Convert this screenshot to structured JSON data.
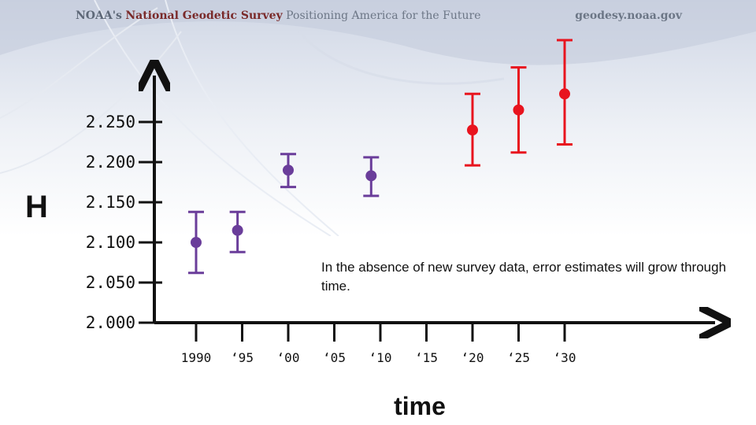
{
  "header": {
    "brand_strong": "NOAA's",
    "brand_name": "National Geodetic Survey",
    "tagline": "Positioning America for the Future",
    "website": "geodesy.noaa.gov"
  },
  "colors": {
    "surveyed": "#6a3d9a",
    "projected": "#e8141e",
    "axis": "#111111"
  },
  "chart_data": {
    "type": "scatter",
    "title": "",
    "xlabel": "time",
    "ylabel": "H",
    "y_ticks": [
      2.0,
      2.05,
      2.1,
      2.15,
      2.2,
      2.25
    ],
    "y_tick_labels": [
      "2.000",
      "2.050",
      "2.100",
      "2.150",
      "2.200",
      "2.250"
    ],
    "x_ticks": [
      1990,
      1995,
      2000,
      2005,
      2010,
      2015,
      2020,
      2025,
      2030
    ],
    "x_tick_labels": [
      "1990",
      "‘95",
      "‘00",
      "‘05",
      "‘10",
      "‘15",
      "‘20",
      "‘25",
      "‘30"
    ],
    "xlim": [
      1990,
      2035
    ],
    "ylim": [
      2.0,
      2.3
    ],
    "grid": false,
    "series": [
      {
        "color": "#6a3d9a",
        "points": [
          {
            "x": 1990,
            "y": 2.1,
            "err_low": 2.062,
            "err_high": 2.138
          },
          {
            "x": 1994.5,
            "y": 2.115,
            "err_low": 2.088,
            "err_high": 2.138
          },
          {
            "x": 2000,
            "y": 2.19,
            "err_low": 2.169,
            "err_high": 2.21
          },
          {
            "x": 2009,
            "y": 2.183,
            "err_low": 2.158,
            "err_high": 2.206
          }
        ]
      },
      {
        "color": "#e8141e",
        "points": [
          {
            "x": 2020,
            "y": 2.24,
            "err_low": 2.196,
            "err_high": 2.285
          },
          {
            "x": 2025,
            "y": 2.265,
            "err_low": 2.212,
            "err_high": 2.318
          },
          {
            "x": 2030,
            "y": 2.285,
            "err_low": 2.222,
            "err_high": 2.352
          }
        ]
      }
    ],
    "annotation": "In the absence of new survey data, error estimates will grow through time."
  }
}
